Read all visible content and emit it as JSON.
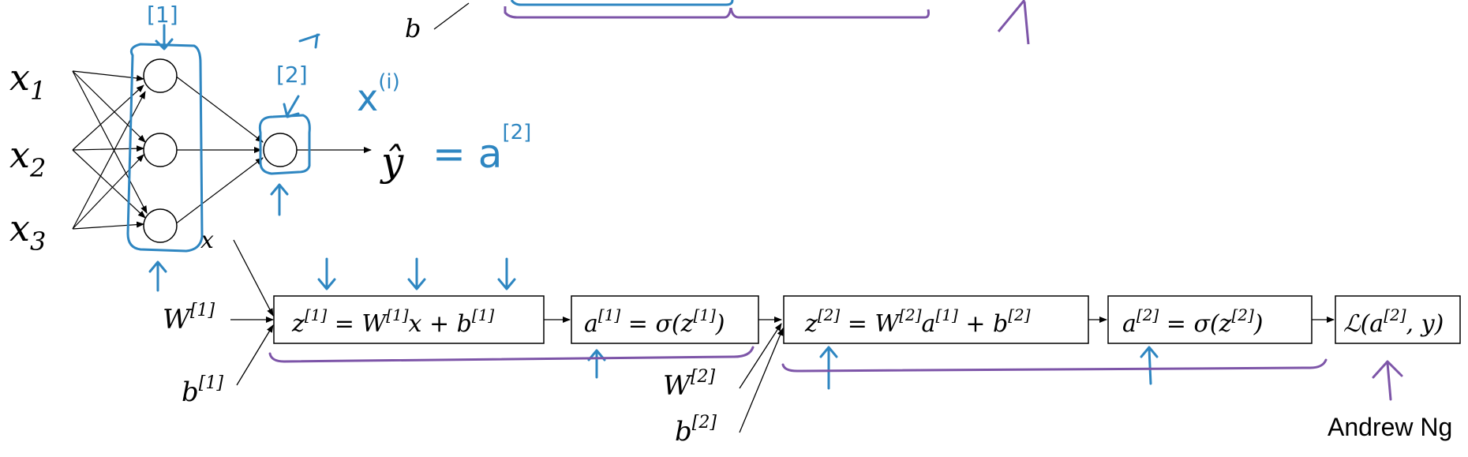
{
  "colors": {
    "ink": "#000000",
    "annotation_blue": "#2e86c1",
    "annotation_purple": "#7d55a8"
  },
  "network": {
    "inputs": [
      "x",
      "x",
      "x"
    ],
    "input_subscripts": [
      "1",
      "2",
      "3"
    ],
    "output": "ŷ",
    "label_x": "x",
    "label_b_top": "b"
  },
  "annotations": {
    "layer1_tag": "[1]",
    "layer2_tag": "[2]",
    "x_i": "x",
    "x_i_sup": "(i)",
    "equals_a": "= a",
    "equals_a_sup": "[2]"
  },
  "graph": {
    "boxes": [
      {
        "id": "z1",
        "base": "z",
        "sup1": "[1]",
        "mid": " = W",
        "sup2": "[1]",
        "tail": "x + b",
        "sup3": "[1]"
      },
      {
        "id": "a1",
        "base": "a",
        "sup1": "[1]",
        "mid": " = σ(z",
        "sup2": "[1]",
        "tail": ")"
      },
      {
        "id": "z2",
        "base": "z",
        "sup1": "[2]",
        "mid": " = W",
        "sup2": "[2]",
        "tail": "a",
        "sup3": "[1]",
        "tail2": " + b",
        "sup4": "[2]"
      },
      {
        "id": "a2",
        "base": "a",
        "sup1": "[2]",
        "mid": " = σ(z",
        "sup2": "[2]",
        "tail": ")"
      },
      {
        "id": "loss",
        "base": "ℒ(a",
        "sup1": "[2]",
        "mid": ", y)"
      }
    ],
    "params": [
      {
        "base": "W",
        "sup": "[1]"
      },
      {
        "base": "b",
        "sup": "[1]"
      },
      {
        "base": "W",
        "sup": "[2]"
      },
      {
        "base": "b",
        "sup": "[2]"
      }
    ]
  },
  "credit": "Andrew Ng"
}
